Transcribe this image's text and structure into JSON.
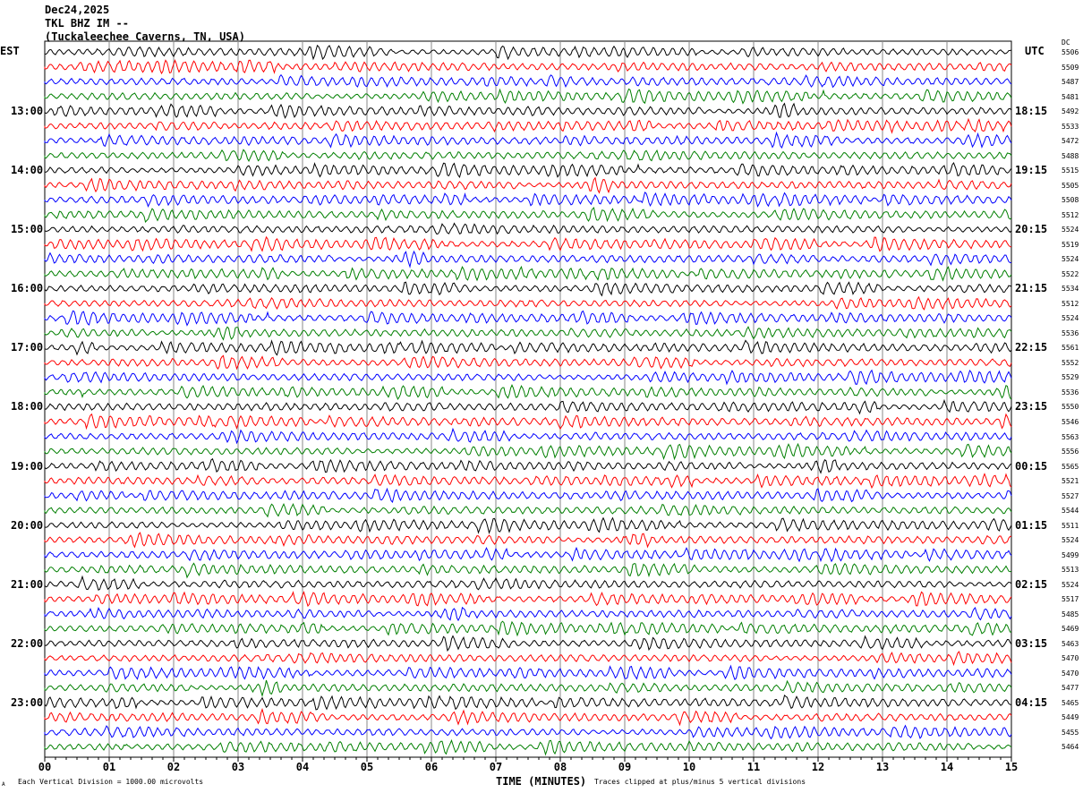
{
  "header": {
    "date": "Dec24,2025",
    "station": "TKL BHZ IM --",
    "location": "(Tuckaleechee Caverns, TN, USA)"
  },
  "chart_data": {
    "type": "line",
    "title": "TKL BHZ IM --",
    "xlabel": "TIME (MINUTES)",
    "xlim": [
      0,
      15
    ],
    "x_ticks": [
      "00",
      "01",
      "02",
      "03",
      "04",
      "05",
      "06",
      "07",
      "08",
      "09",
      "10",
      "11",
      "12",
      "13",
      "14",
      "15"
    ],
    "left_axis_title": "EST",
    "right_axis_title": "UTC",
    "dc_title": "DC",
    "left_hour_labels": [
      "13:00",
      "14:00",
      "15:00",
      "16:00",
      "17:00",
      "18:00",
      "19:00",
      "20:00",
      "21:00",
      "22:00",
      "23:00"
    ],
    "right_hour_labels": [
      "18:15",
      "19:15",
      "20:15",
      "21:15",
      "22:15",
      "23:15",
      "00:15",
      "01:15",
      "02:15",
      "03:15",
      "04:15"
    ],
    "trace_colors": [
      "#000000",
      "#ff0000",
      "#0000ff",
      "#007f00"
    ],
    "trace_count": 48,
    "traces_per_hour": 4,
    "dc_offsets": [
      "5506",
      "5509",
      "5487",
      "5481",
      "5492",
      "5533",
      "5472",
      "5488",
      "5515",
      "5505",
      "5508",
      "5512",
      "5524",
      "5519",
      "5524",
      "5522",
      "5534",
      "5512",
      "5524",
      "5536",
      "5561",
      "5552",
      "5529",
      "5536",
      "5550",
      "5546",
      "5563",
      "5556",
      "5565",
      "5521",
      "5527",
      "5544",
      "5511",
      "5524",
      "5499",
      "5513",
      "5524",
      "5517",
      "5485",
      "5469",
      "5463",
      "5470",
      "5470",
      "5477",
      "5465",
      "5449",
      "5455",
      "5464"
    ],
    "grid": true
  },
  "footer": {
    "scale_note": "Each Vertical Division = 1000.00 microvolts",
    "clip_note": "Traces clipped at plus/minus 5 vertical divisions",
    "corner_mark": "A"
  }
}
